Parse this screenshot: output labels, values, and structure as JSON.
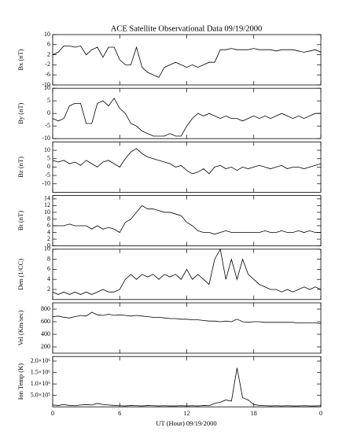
{
  "chart_data": {
    "type": "line",
    "title": "ACE Satellite Observational Data   09/19/2000",
    "xlabel": "UT (Hour)   09/19/2000",
    "x": [
      0,
      0.5,
      1,
      1.5,
      2,
      2.5,
      3,
      3.5,
      4,
      4.5,
      5,
      5.5,
      6,
      6.5,
      7,
      7.5,
      8,
      8.5,
      9,
      9.5,
      10,
      10.5,
      11,
      11.5,
      12,
      12.5,
      13,
      13.5,
      14,
      14.5,
      15,
      15.5,
      16,
      16.5,
      17,
      17.5,
      18,
      18.5,
      19,
      19.5,
      20,
      20.5,
      21,
      21.5,
      22,
      22.5,
      23,
      23.5,
      24
    ],
    "xlim": [
      0,
      24
    ],
    "xticks": [
      0,
      6,
      12,
      18,
      {
        "value": 24,
        "label": "0"
      }
    ],
    "color": "#000000",
    "panels": [
      {
        "ylabel": "Bx (nT)",
        "ylim": [
          -10,
          10
        ],
        "yticks": [
          -10,
          -6,
          -2,
          2,
          6,
          10
        ],
        "values": [
          2,
          3,
          5.5,
          5.5,
          5,
          5.5,
          2,
          4,
          5,
          1,
          5,
          5,
          0,
          -2,
          -2,
          5,
          -3,
          -5,
          -6,
          -7,
          -3,
          -2,
          -1,
          -2,
          -3,
          -2,
          -3,
          -2,
          -1,
          -1,
          4,
          4,
          4.5,
          4,
          4,
          4,
          4.5,
          4,
          4,
          4,
          3.5,
          4,
          4,
          4,
          3.5,
          3,
          3.5,
          4,
          3
        ]
      },
      {
        "ylabel": "By (nT)",
        "ylim": [
          -10,
          10
        ],
        "yticks": [
          -10,
          -5,
          0,
          5,
          10
        ],
        "values": [
          -2,
          -3,
          -2,
          3,
          4,
          4,
          -4,
          -4,
          4,
          5,
          3,
          6,
          2,
          0,
          -4,
          -5,
          -7,
          -8,
          -9,
          -9,
          -9,
          -8,
          -9,
          -9,
          -5,
          -2,
          0,
          -1,
          0,
          -1,
          -2,
          -1,
          -2,
          -2,
          -3,
          -2,
          -1,
          -2,
          -1,
          -2,
          -1,
          0,
          -1,
          -2,
          -1,
          -2,
          -1,
          0,
          0
        ]
      },
      {
        "ylabel": "Bz (nT)",
        "ylim": [
          -15,
          15
        ],
        "yticks": [
          -10,
          -5,
          0,
          5,
          10
        ],
        "values": [
          4,
          3,
          4,
          2,
          3,
          1,
          4,
          2,
          0,
          3,
          4,
          2,
          0,
          5,
          9,
          11,
          8,
          6,
          5,
          4,
          3,
          2,
          0,
          1,
          -2,
          -4,
          -3,
          -1,
          -4,
          0,
          1,
          -1,
          0,
          -2,
          0,
          -1,
          0,
          1,
          0,
          -1,
          0,
          1,
          -1,
          0,
          0,
          -1,
          0,
          1,
          2
        ]
      },
      {
        "ylabel": "Bt (nT)",
        "ylim": [
          0,
          15
        ],
        "yticks": [
          0,
          2,
          4,
          6,
          8,
          10,
          12,
          14
        ],
        "values": [
          6,
          6,
          6,
          6.5,
          6,
          6,
          6,
          5,
          6,
          5,
          5.5,
          5,
          4,
          7,
          8,
          10,
          12,
          11,
          11,
          10.5,
          10,
          10,
          9.5,
          9,
          7,
          6,
          4.5,
          4,
          4,
          3.5,
          4,
          4.5,
          4,
          4,
          4,
          4,
          4,
          4,
          4.5,
          4,
          4,
          4.5,
          4,
          4,
          4.5,
          4,
          4.5,
          4,
          4
        ]
      },
      {
        "ylabel": "Den (1/CC)",
        "ylim": [
          0,
          10
        ],
        "yticks": [
          2,
          4,
          6,
          8,
          10
        ],
        "values": [
          1.5,
          1,
          1.5,
          1,
          1.5,
          1,
          1.5,
          1,
          1.5,
          2,
          1.5,
          1.5,
          2,
          4,
          5,
          4,
          5,
          4.5,
          5,
          4,
          5,
          4.5,
          5,
          4,
          6,
          4,
          5,
          4,
          3,
          8,
          10,
          4,
          8,
          4,
          8,
          5,
          4,
          3,
          2.5,
          2,
          2,
          1.5,
          2,
          1.5,
          2,
          2.5,
          2,
          2.5,
          2
        ]
      },
      {
        "ylabel": "Vel (Km/sec)",
        "ylim": [
          100,
          900
        ],
        "yticks": [
          200,
          400,
          600,
          800
        ],
        "values": [
          680,
          690,
          670,
          660,
          680,
          700,
          690,
          750,
          710,
          700,
          720,
          700,
          710,
          700,
          690,
          700,
          690,
          680,
          670,
          670,
          660,
          650,
          650,
          640,
          640,
          630,
          630,
          620,
          610,
          610,
          600,
          610,
          600,
          640,
          600,
          590,
          600,
          600,
          590,
          590,
          590,
          590,
          590,
          590,
          580,
          580,
          580,
          580,
          570
        ]
      },
      {
        "ylabel": "Ion Temp (K)",
        "ylim": [
          0,
          2200000
        ],
        "yticks": [
          {
            "value": 500000,
            "label": "5.0×10⁵"
          },
          {
            "value": 1000000,
            "label": "1.0×10⁶"
          },
          {
            "value": 1500000,
            "label": "1.5×10⁶"
          },
          {
            "value": 2000000,
            "label": "2.0×10⁶"
          }
        ],
        "values": [
          80000,
          60000,
          100000,
          60000,
          50000,
          80000,
          100000,
          80000,
          150000,
          100000,
          80000,
          60000,
          50000,
          40000,
          60000,
          50000,
          40000,
          60000,
          50000,
          40000,
          50000,
          40000,
          40000,
          50000,
          40000,
          50000,
          40000,
          60000,
          50000,
          150000,
          200000,
          300000,
          250000,
          1700000,
          400000,
          300000,
          100000,
          60000,
          50000,
          40000,
          50000,
          40000,
          50000,
          40000,
          40000,
          50000,
          40000,
          40000,
          50000
        ]
      }
    ]
  }
}
